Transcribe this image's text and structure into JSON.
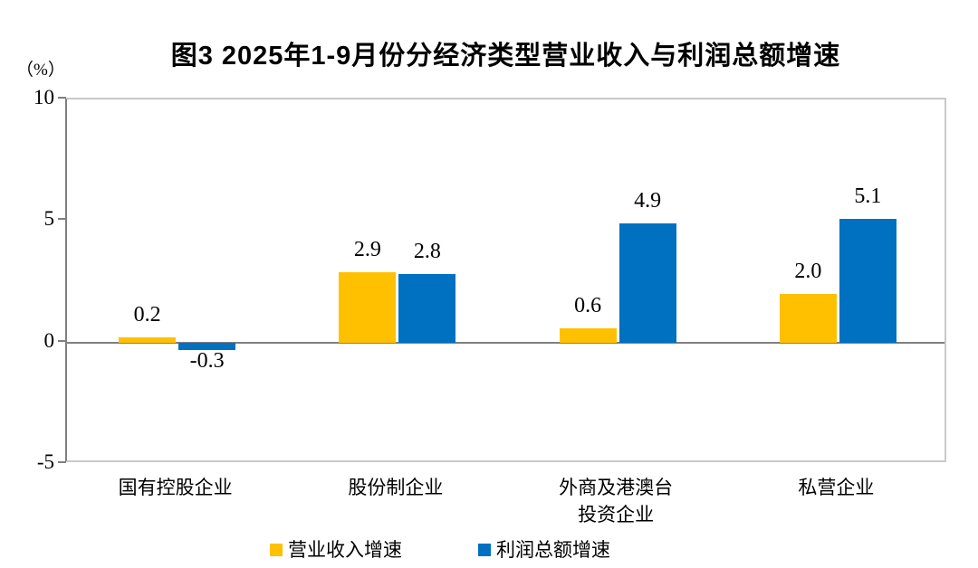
{
  "chart_data": {
    "type": "bar",
    "title": "图3 2025年1-9月份分经济类型营业收入与利润总额增速",
    "unit_label": "（%）",
    "categories": [
      "国有控股企业",
      "股份制企业",
      "外商及港澳台\n投资企业",
      "私营企业"
    ],
    "series": [
      {
        "name": "营业收入增速",
        "color": "#FFC000",
        "values": [
          0.2,
          2.9,
          0.6,
          2.0
        ]
      },
      {
        "name": "利润总额增速",
        "color": "#0070C0",
        "values": [
          -0.3,
          2.8,
          4.9,
          5.1
        ]
      }
    ],
    "ylim": [
      -5,
      10
    ],
    "yticks": [
      10,
      5,
      0,
      -5
    ],
    "xlabel": "",
    "ylabel": "",
    "grid": false,
    "legend_position": "bottom",
    "value_label_decimals": 1
  },
  "colors": {
    "series_revenue": "#FFC000",
    "series_profit": "#0070C0",
    "axis_line": "#7F7F7F",
    "plot_border": "#C9C9C9",
    "text": "#000000",
    "background": "#FFFFFF"
  }
}
